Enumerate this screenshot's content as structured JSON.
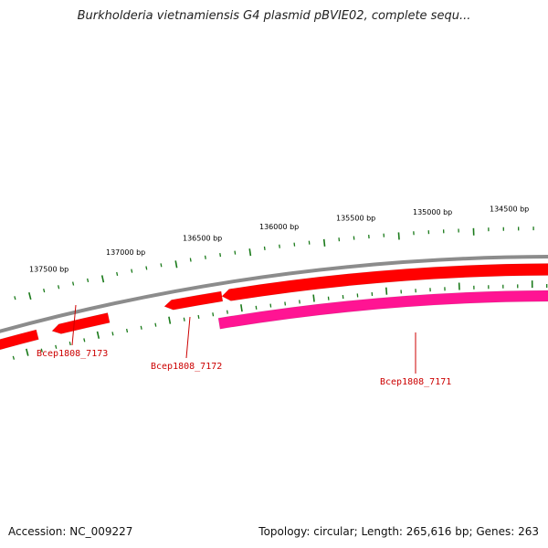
{
  "title": "Burkholderia vietnamiensis G4 plasmid pBVIE02, complete sequ...",
  "footer": {
    "accession": "Accession: NC_009227",
    "summary": "Topology: circular; Length: 265,616 bp; Genes: 263"
  },
  "colors": {
    "backbone": "#8c8c8c",
    "forward_gene": "#ff0000",
    "reverse_gene": "#ff1493",
    "tick": "#1a7a1a",
    "gene_label": "#cc0000"
  },
  "scale_labels": [
    "137500 bp",
    "137000 bp",
    "136500 bp",
    "136000 bp",
    "135500 bp",
    "135000 bp",
    "134500 bp"
  ],
  "genes": [
    {
      "name": "Bcep1808_7173",
      "strand": "forward"
    },
    {
      "name": "Bcep1808_7172",
      "strand": "forward"
    },
    {
      "name": "Bcep1808_7171",
      "strand": "reverse"
    }
  ]
}
